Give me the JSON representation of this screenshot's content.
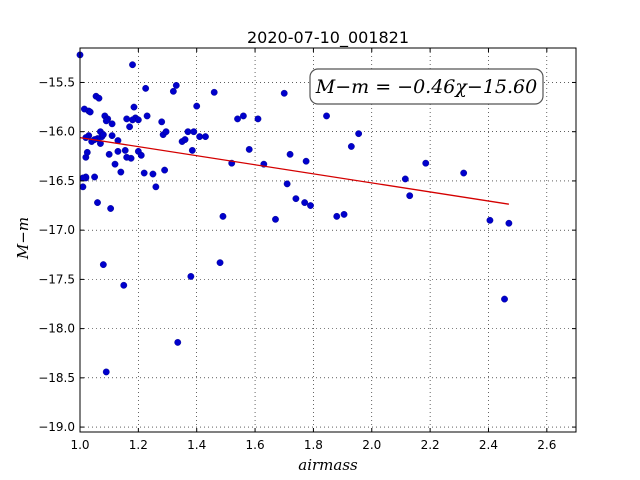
{
  "chart_data": {
    "type": "scatter",
    "title": "2020-07-10_001821",
    "xlabel": "airmass",
    "ylabel": "M−m",
    "xlim": [
      1.0,
      2.7
    ],
    "ylim": [
      -19.05,
      -15.15
    ],
    "xticks": [
      1.0,
      1.2,
      1.4,
      1.6,
      1.8,
      2.0,
      2.2,
      2.4,
      2.6
    ],
    "xtick_labels": [
      "1.0",
      "1.2",
      "1.4",
      "1.6",
      "1.8",
      "2.0",
      "2.2",
      "2.4",
      "2.6"
    ],
    "yticks": [
      -15.5,
      -16.0,
      -16.5,
      -17.0,
      -17.5,
      -18.0,
      -18.5,
      -19.0
    ],
    "ytick_labels": [
      "−15.5",
      "−16.0",
      "−16.5",
      "−17.0",
      "−17.5",
      "−18.0",
      "−18.5",
      "−19.0"
    ],
    "grid": true,
    "annotation": "M−m = −0.46χ−15.60",
    "fit_line": {
      "slope": -0.46,
      "intercept": -15.6,
      "x_range": [
        1.0,
        2.47
      ],
      "color": "#d40000"
    },
    "marker_color": "#0000cc",
    "x": [
      1.0,
      1.01,
      1.02,
      1.015,
      1.02,
      1.025,
      1.03,
      1.02,
      1.01,
      1.03,
      1.04,
      1.05,
      1.055,
      1.06,
      1.065,
      1.07,
      1.075,
      1.08,
      1.085,
      1.09,
      1.095,
      1.1,
      1.105,
      1.11,
      1.12,
      1.13,
      1.14,
      1.15,
      1.155,
      1.16,
      1.17,
      1.175,
      1.18,
      1.185,
      1.19,
      1.2,
      1.21,
      1.22,
      1.225,
      1.23,
      1.25,
      1.26,
      1.28,
      1.285,
      1.29,
      1.295,
      1.32,
      1.33,
      1.335,
      1.35,
      1.36,
      1.37,
      1.38,
      1.385,
      1.39,
      1.4,
      1.41,
      1.43,
      1.46,
      1.48,
      1.49,
      1.52,
      1.54,
      1.56,
      1.58,
      1.61,
      1.63,
      1.67,
      1.7,
      1.71,
      1.72,
      1.74,
      1.77,
      1.775,
      1.79,
      1.845,
      1.88,
      1.905,
      1.93,
      1.955,
      2.115,
      2.13,
      2.185,
      2.315,
      2.405,
      2.455,
      2.47,
      1.035,
      1.06,
      1.08,
      1.09,
      1.11,
      1.18,
      1.05,
      1.02,
      1.13,
      1.07,
      1.16,
      1.2
    ],
    "y": [
      -15.22,
      -16.56,
      -16.47,
      -15.77,
      -16.26,
      -16.21,
      -16.04,
      -16.46,
      -16.47,
      -15.79,
      -16.1,
      -16.46,
      -15.64,
      -16.72,
      -15.66,
      -16.0,
      -16.05,
      -17.35,
      -15.84,
      -18.44,
      -15.87,
      -16.23,
      -16.78,
      -16.04,
      -16.33,
      -16.09,
      -16.41,
      -17.56,
      -16.19,
      -15.87,
      -15.95,
      -16.27,
      -15.32,
      -15.75,
      -15.86,
      -16.2,
      -16.24,
      -16.42,
      -15.56,
      -15.84,
      -16.43,
      -16.56,
      -15.9,
      -16.03,
      -16.39,
      -16.0,
      -15.59,
      -15.53,
      -18.14,
      -16.1,
      -16.08,
      -16.0,
      -17.47,
      -16.19,
      -16.0,
      -15.74,
      -16.05,
      -16.05,
      -15.6,
      -17.33,
      -16.86,
      -16.32,
      -15.87,
      -15.84,
      -16.18,
      -15.87,
      -16.33,
      -16.89,
      -15.61,
      -16.53,
      -16.23,
      -16.68,
      -16.72,
      -16.3,
      -16.75,
      -15.84,
      -16.86,
      -16.84,
      -16.15,
      -16.02,
      -16.48,
      -16.65,
      -16.32,
      -16.42,
      -16.9,
      -17.7,
      -16.93,
      -15.8,
      -16.07,
      -16.03,
      -15.89,
      -15.92,
      -15.88,
      -16.08,
      -16.06,
      -16.2,
      -16.12,
      -16.26,
      -15.88
    ]
  }
}
